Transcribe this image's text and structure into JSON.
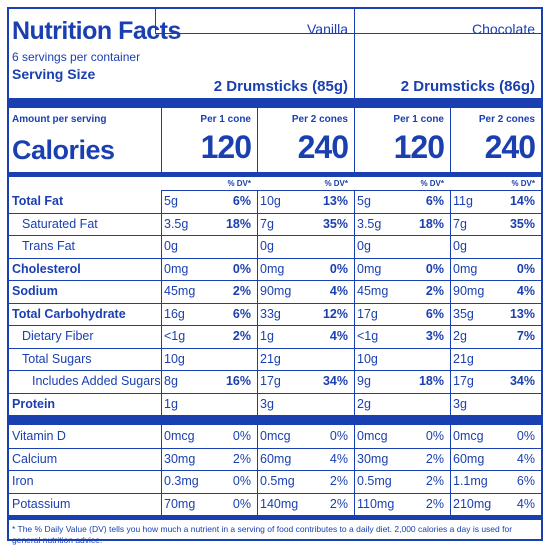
{
  "header": {
    "title": "Nutrition Facts",
    "servings": "6 servings per container",
    "serving_size_label": "Serving Size",
    "flavors": [
      "Vanilla",
      "Chocolate"
    ],
    "serving_sizes": [
      "2 Drumsticks (85g)",
      "2 Drumsticks (86g)"
    ]
  },
  "calories": {
    "amount_label": "Amount per serving",
    "label": "Calories",
    "col_headers": [
      "Per 1 cone",
      "Per 2 cones",
      "Per 1 cone",
      "Per 2 cones"
    ],
    "values": [
      "120",
      "240",
      "120",
      "240"
    ],
    "dv_header": "% DV*"
  },
  "nutrients": [
    {
      "name": "Total Fat",
      "bold": true,
      "indent": 0,
      "amounts": [
        "5g",
        "10g",
        "5g",
        "11g"
      ],
      "dv": [
        "6%",
        "13%",
        "6%",
        "14%"
      ]
    },
    {
      "name": "Saturated Fat",
      "bold": false,
      "indent": 1,
      "amounts": [
        "3.5g",
        "7g",
        "3.5g",
        "7g"
      ],
      "dv": [
        "18%",
        "35%",
        "18%",
        "35%"
      ]
    },
    {
      "name": "Trans Fat",
      "bold": false,
      "indent": 1,
      "amounts": [
        "0g",
        "0g",
        "0g",
        "0g"
      ],
      "dv": [
        "",
        "",
        "",
        ""
      ]
    },
    {
      "name": "Cholesterol",
      "bold": true,
      "indent": 0,
      "amounts": [
        "0mg",
        "0mg",
        "0mg",
        "0mg"
      ],
      "dv": [
        "0%",
        "0%",
        "0%",
        "0%"
      ]
    },
    {
      "name": "Sodium",
      "bold": true,
      "indent": 0,
      "amounts": [
        "45mg",
        "90mg",
        "45mg",
        "90mg"
      ],
      "dv": [
        "2%",
        "4%",
        "2%",
        "4%"
      ]
    },
    {
      "name": "Total Carbohydrate",
      "bold": true,
      "indent": 0,
      "amounts": [
        "16g",
        "33g",
        "17g",
        "35g"
      ],
      "dv": [
        "6%",
        "12%",
        "6%",
        "13%"
      ]
    },
    {
      "name": "Dietary Fiber",
      "bold": false,
      "indent": 1,
      "amounts": [
        "<1g",
        "1g",
        "<1g",
        "2g"
      ],
      "dv": [
        "2%",
        "4%",
        "3%",
        "7%"
      ]
    },
    {
      "name": "Total Sugars",
      "bold": false,
      "indent": 1,
      "amounts": [
        "10g",
        "21g",
        "10g",
        "21g"
      ],
      "dv": [
        "",
        "",
        "",
        ""
      ]
    },
    {
      "name": "Includes Added Sugars",
      "bold": false,
      "indent": 2,
      "amounts": [
        "8g",
        "17g",
        "9g",
        "17g"
      ],
      "dv": [
        "16%",
        "34%",
        "18%",
        "34%"
      ]
    },
    {
      "name": "Protein",
      "bold": true,
      "indent": 0,
      "amounts": [
        "1g",
        "3g",
        "2g",
        "3g"
      ],
      "dv": [
        "",
        "",
        "",
        ""
      ]
    }
  ],
  "vitamins": [
    {
      "name": "Vitamin D",
      "amounts": [
        "0mcg",
        "0mcg",
        "0mcg",
        "0mcg"
      ],
      "dv": [
        "0%",
        "0%",
        "0%",
        "0%"
      ]
    },
    {
      "name": "Calcium",
      "amounts": [
        "30mg",
        "60mg",
        "30mg",
        "60mg"
      ],
      "dv": [
        "2%",
        "4%",
        "2%",
        "4%"
      ]
    },
    {
      "name": "Iron",
      "amounts": [
        "0.3mg",
        "0.5mg",
        "0.5mg",
        "1.1mg"
      ],
      "dv": [
        "0%",
        "2%",
        "2%",
        "6%"
      ]
    },
    {
      "name": "Potassium",
      "amounts": [
        "70mg",
        "140mg",
        "110mg",
        "210mg"
      ],
      "dv": [
        "0%",
        "2%",
        "2%",
        "4%"
      ]
    }
  ],
  "footnote": "* The % Daily Value (DV) tells you how much a nutrient in a serving of food contributes to a daily diet. 2,000 calories a day is used for general nutrition advice.",
  "colors": {
    "ink": "#1a3fb0",
    "background": "#ffffff"
  }
}
